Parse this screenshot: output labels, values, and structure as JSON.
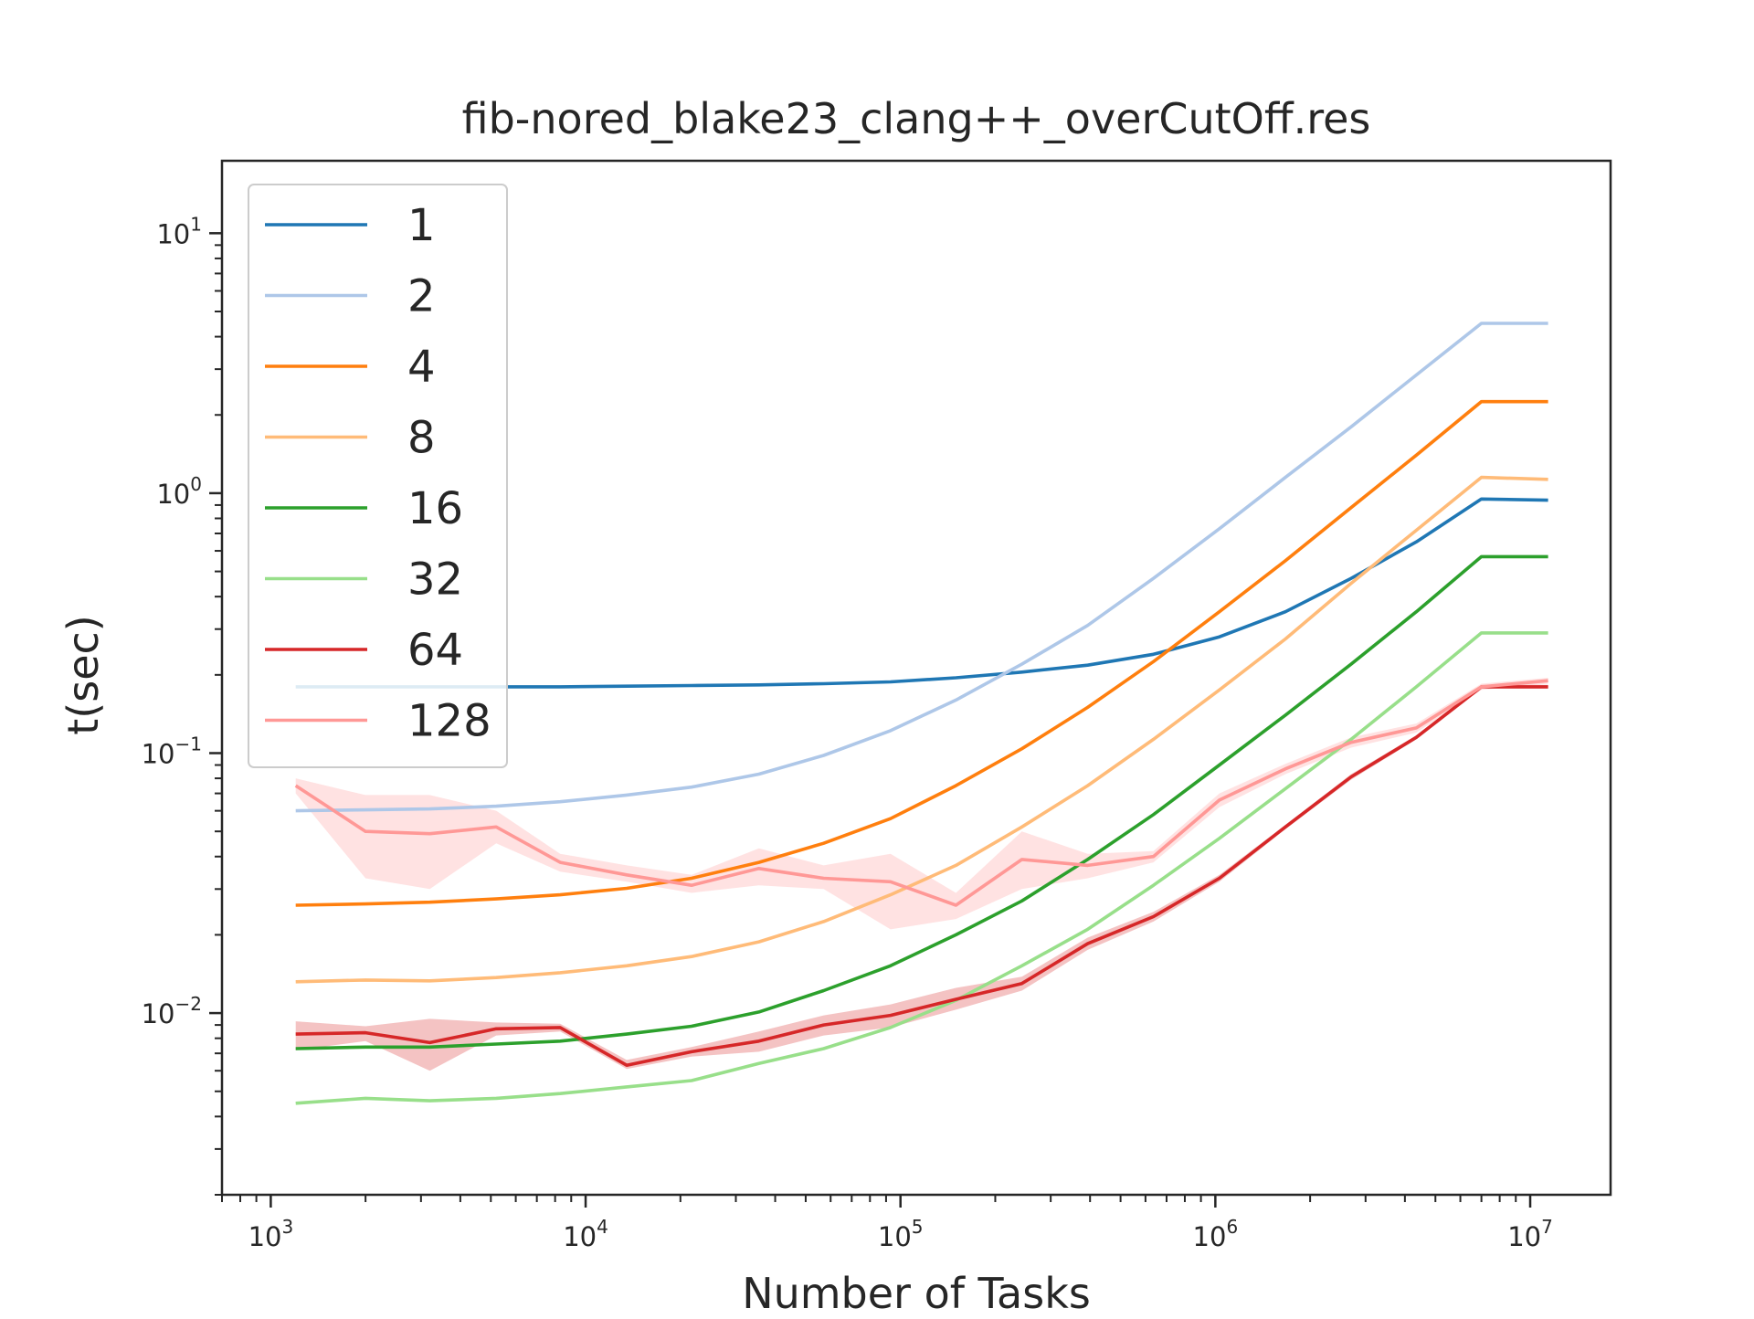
{
  "chart_data": {
    "type": "line",
    "title": "fib-nored_blake23_clang++_overCutOff.res",
    "xlabel": "Number of Tasks",
    "ylabel": "t(sec)",
    "xscale": "log",
    "yscale": "log",
    "xlim": [
      700,
      18000000
    ],
    "ylim": [
      0.002,
      19
    ],
    "xticks": [
      {
        "value": 1000,
        "base": "10",
        "exp": "3"
      },
      {
        "value": 10000,
        "base": "10",
        "exp": "4"
      },
      {
        "value": 100000,
        "base": "10",
        "exp": "5"
      },
      {
        "value": 1000000,
        "base": "10",
        "exp": "6"
      },
      {
        "value": 10000000,
        "base": "10",
        "exp": "7"
      }
    ],
    "yticks": [
      {
        "value": 0.01,
        "base": "10",
        "exp": "−2"
      },
      {
        "value": 0.1,
        "base": "10",
        "exp": "−1"
      },
      {
        "value": 1,
        "base": "10",
        "exp": "0"
      },
      {
        "value": 10,
        "base": "10",
        "exp": "1"
      }
    ],
    "grid": false,
    "legend": {
      "placement": "top-left"
    },
    "x": [
      1200,
      2000,
      3200,
      5200,
      8300,
      13500,
      21700,
      35500,
      57000,
      93000,
      150000,
      243000,
      393000,
      636000,
      1030000,
      1670000,
      2700000,
      4350000,
      7000000,
      11400000
    ],
    "series": [
      {
        "name": "1",
        "color": "#1f77b4",
        "values": [
          0.18,
          0.18,
          0.18,
          0.18,
          0.18,
          0.181,
          0.182,
          0.183,
          0.185,
          0.188,
          0.195,
          0.205,
          0.218,
          0.24,
          0.28,
          0.35,
          0.47,
          0.65,
          0.95,
          0.94
        ]
      },
      {
        "name": "2",
        "color": "#aec7e8",
        "values": [
          0.06,
          0.0605,
          0.061,
          0.0625,
          0.065,
          0.069,
          0.074,
          0.083,
          0.098,
          0.122,
          0.16,
          0.22,
          0.31,
          0.47,
          0.73,
          1.15,
          1.8,
          2.85,
          4.5,
          4.5
        ]
      },
      {
        "name": "4",
        "color": "#ff7f0e",
        "values": [
          0.026,
          0.0263,
          0.0267,
          0.0275,
          0.0285,
          0.0302,
          0.033,
          0.038,
          0.045,
          0.056,
          0.075,
          0.104,
          0.15,
          0.225,
          0.35,
          0.55,
          0.88,
          1.4,
          2.25,
          2.25
        ]
      },
      {
        "name": "8",
        "color": "#ffbb78",
        "values": [
          0.0132,
          0.0134,
          0.0133,
          0.0137,
          0.0143,
          0.0152,
          0.0165,
          0.0188,
          0.0225,
          0.0285,
          0.037,
          0.052,
          0.075,
          0.113,
          0.175,
          0.275,
          0.45,
          0.72,
          1.15,
          1.13
        ]
      },
      {
        "name": "16",
        "color": "#2ca02c",
        "values": [
          0.0073,
          0.0074,
          0.0074,
          0.0076,
          0.0078,
          0.0083,
          0.0089,
          0.0101,
          0.0122,
          0.0152,
          0.02,
          0.027,
          0.039,
          0.058,
          0.09,
          0.14,
          0.22,
          0.35,
          0.57,
          0.57
        ]
      },
      {
        "name": "32",
        "color": "#98df8a",
        "values": [
          0.0045,
          0.0047,
          0.0046,
          0.0047,
          0.0049,
          0.0052,
          0.0055,
          0.0064,
          0.0073,
          0.0088,
          0.0112,
          0.0152,
          0.021,
          0.031,
          0.047,
          0.073,
          0.113,
          0.18,
          0.29,
          0.29
        ]
      },
      {
        "name": "64",
        "color": "#d62728",
        "values": [
          0.0083,
          0.0084,
          0.0077,
          0.0087,
          0.0088,
          0.0063,
          0.0071,
          0.0078,
          0.009,
          0.0098,
          0.0113,
          0.013,
          0.0185,
          0.0235,
          0.033,
          0.052,
          0.081,
          0.115,
          0.18,
          0.18
        ],
        "band_low": [
          0.0072,
          0.0078,
          0.006,
          0.0082,
          0.0085,
          0.0061,
          0.0068,
          0.0071,
          0.0082,
          0.0088,
          0.0103,
          0.0122,
          0.0175,
          0.0225,
          0.032,
          0.051,
          0.079,
          0.113,
          0.177,
          0.177
        ],
        "band_high": [
          0.0093,
          0.0089,
          0.0095,
          0.0092,
          0.0091,
          0.0066,
          0.0074,
          0.0085,
          0.0098,
          0.0108,
          0.0125,
          0.0138,
          0.0195,
          0.0245,
          0.034,
          0.053,
          0.083,
          0.117,
          0.183,
          0.183
        ]
      },
      {
        "name": "128",
        "color": "#ff9896",
        "values": [
          0.075,
          0.05,
          0.049,
          0.052,
          0.038,
          0.034,
          0.031,
          0.036,
          0.033,
          0.032,
          0.026,
          0.039,
          0.037,
          0.04,
          0.066,
          0.087,
          0.11,
          0.125,
          0.18,
          0.19
        ],
        "band_low": [
          0.07,
          0.033,
          0.03,
          0.045,
          0.035,
          0.032,
          0.029,
          0.031,
          0.03,
          0.021,
          0.023,
          0.03,
          0.033,
          0.038,
          0.062,
          0.083,
          0.105,
          0.12,
          0.175,
          0.185
        ],
        "band_high": [
          0.08,
          0.069,
          0.069,
          0.06,
          0.041,
          0.037,
          0.034,
          0.043,
          0.037,
          0.041,
          0.029,
          0.05,
          0.041,
          0.042,
          0.07,
          0.091,
          0.115,
          0.13,
          0.185,
          0.195
        ]
      }
    ]
  }
}
